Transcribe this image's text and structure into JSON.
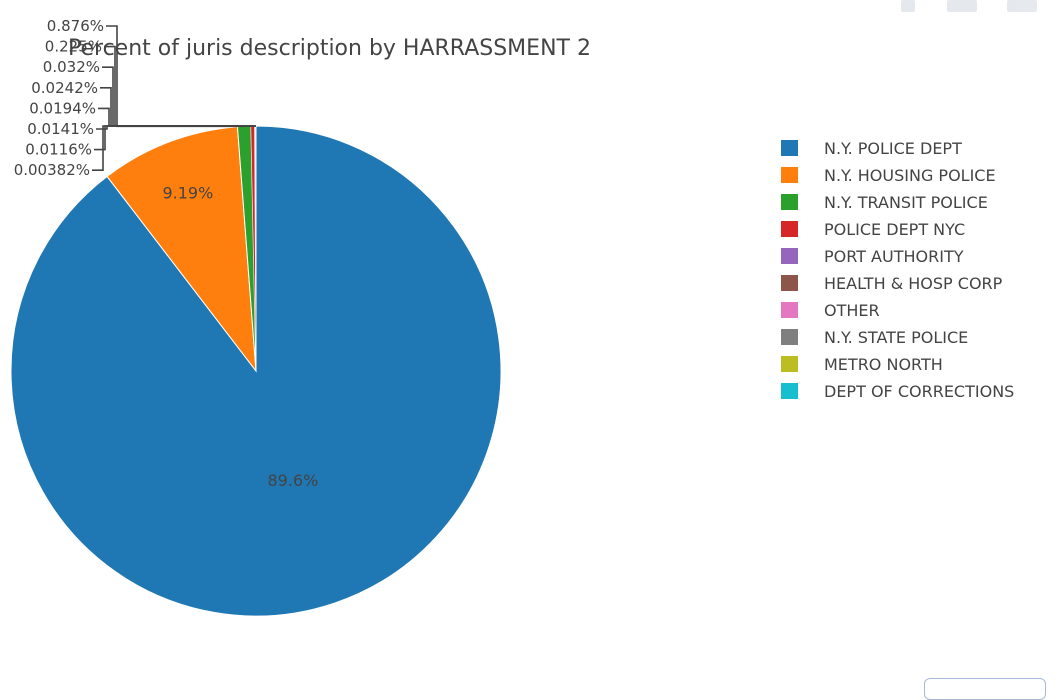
{
  "chart_data": {
    "type": "pie",
    "title": "Percent of juris description by HARRASSMENT 2",
    "labels": [
      "N.Y. POLICE DEPT",
      "N.Y. HOUSING POLICE",
      "N.Y. TRANSIT POLICE",
      "POLICE DEPT NYC",
      "PORT AUTHORITY",
      "HEALTH & HOSP CORP",
      "OTHER",
      "N.Y. STATE POLICE",
      "METRO NORTH",
      "DEPT OF CORRECTIONS"
    ],
    "values": [
      89.6,
      9.19,
      0.876,
      0.225,
      0.032,
      0.0242,
      0.0194,
      0.0141,
      0.0116,
      0.00382
    ],
    "text_labels": [
      "89.6%",
      "9.19%",
      "0.876%",
      "0.225%",
      "0.032%",
      "0.0242%",
      "0.0194%",
      "0.0141%",
      "0.0116%",
      "0.00382%"
    ],
    "colors": [
      "#1f77b4",
      "#ff7f0e",
      "#2ca02c",
      "#d62728",
      "#9467bd",
      "#8c564b",
      "#e377c2",
      "#7f7f7f",
      "#bcbd22",
      "#17becf"
    ],
    "direction": "clockwise",
    "legend_position": "right"
  },
  "modebar": {
    "icons": [
      "camera-icon",
      "zoom-icon",
      "bar-chart-icon"
    ]
  }
}
